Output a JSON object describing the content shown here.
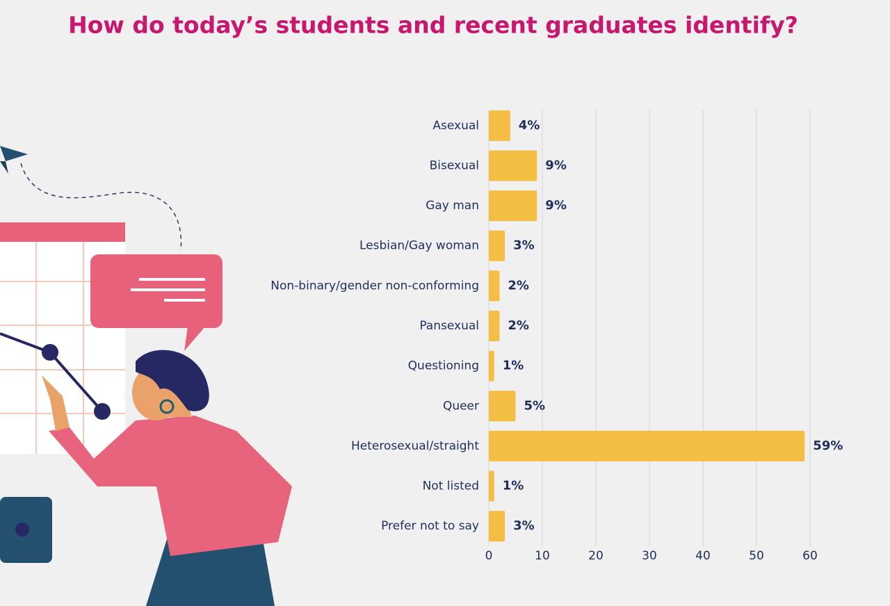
{
  "chart_data": {
    "type": "hbar",
    "title": "How do today’s students and recent graduates identify?",
    "categories": [
      "Asexual",
      "Bisexual",
      "Gay man",
      "Lesbian/Gay woman",
      "Non-binary/gender non-conforming",
      "Pansexual",
      "Questioning",
      "Queer",
      "Heterosexual/straight",
      "Not listed",
      "Prefer not to say"
    ],
    "values": [
      4,
      9,
      9,
      3,
      2,
      2,
      1,
      5,
      59,
      1,
      3
    ],
    "value_labels": [
      "4%",
      "9%",
      "9%",
      "3%",
      "2%",
      "2%",
      "1%",
      "5%",
      "59%",
      "1%",
      "3%"
    ],
    "color": "#f4be45",
    "xlim": [
      0,
      60
    ],
    "xticks": [
      0,
      10,
      20,
      30,
      40,
      50,
      60
    ],
    "grid": true
  }
}
